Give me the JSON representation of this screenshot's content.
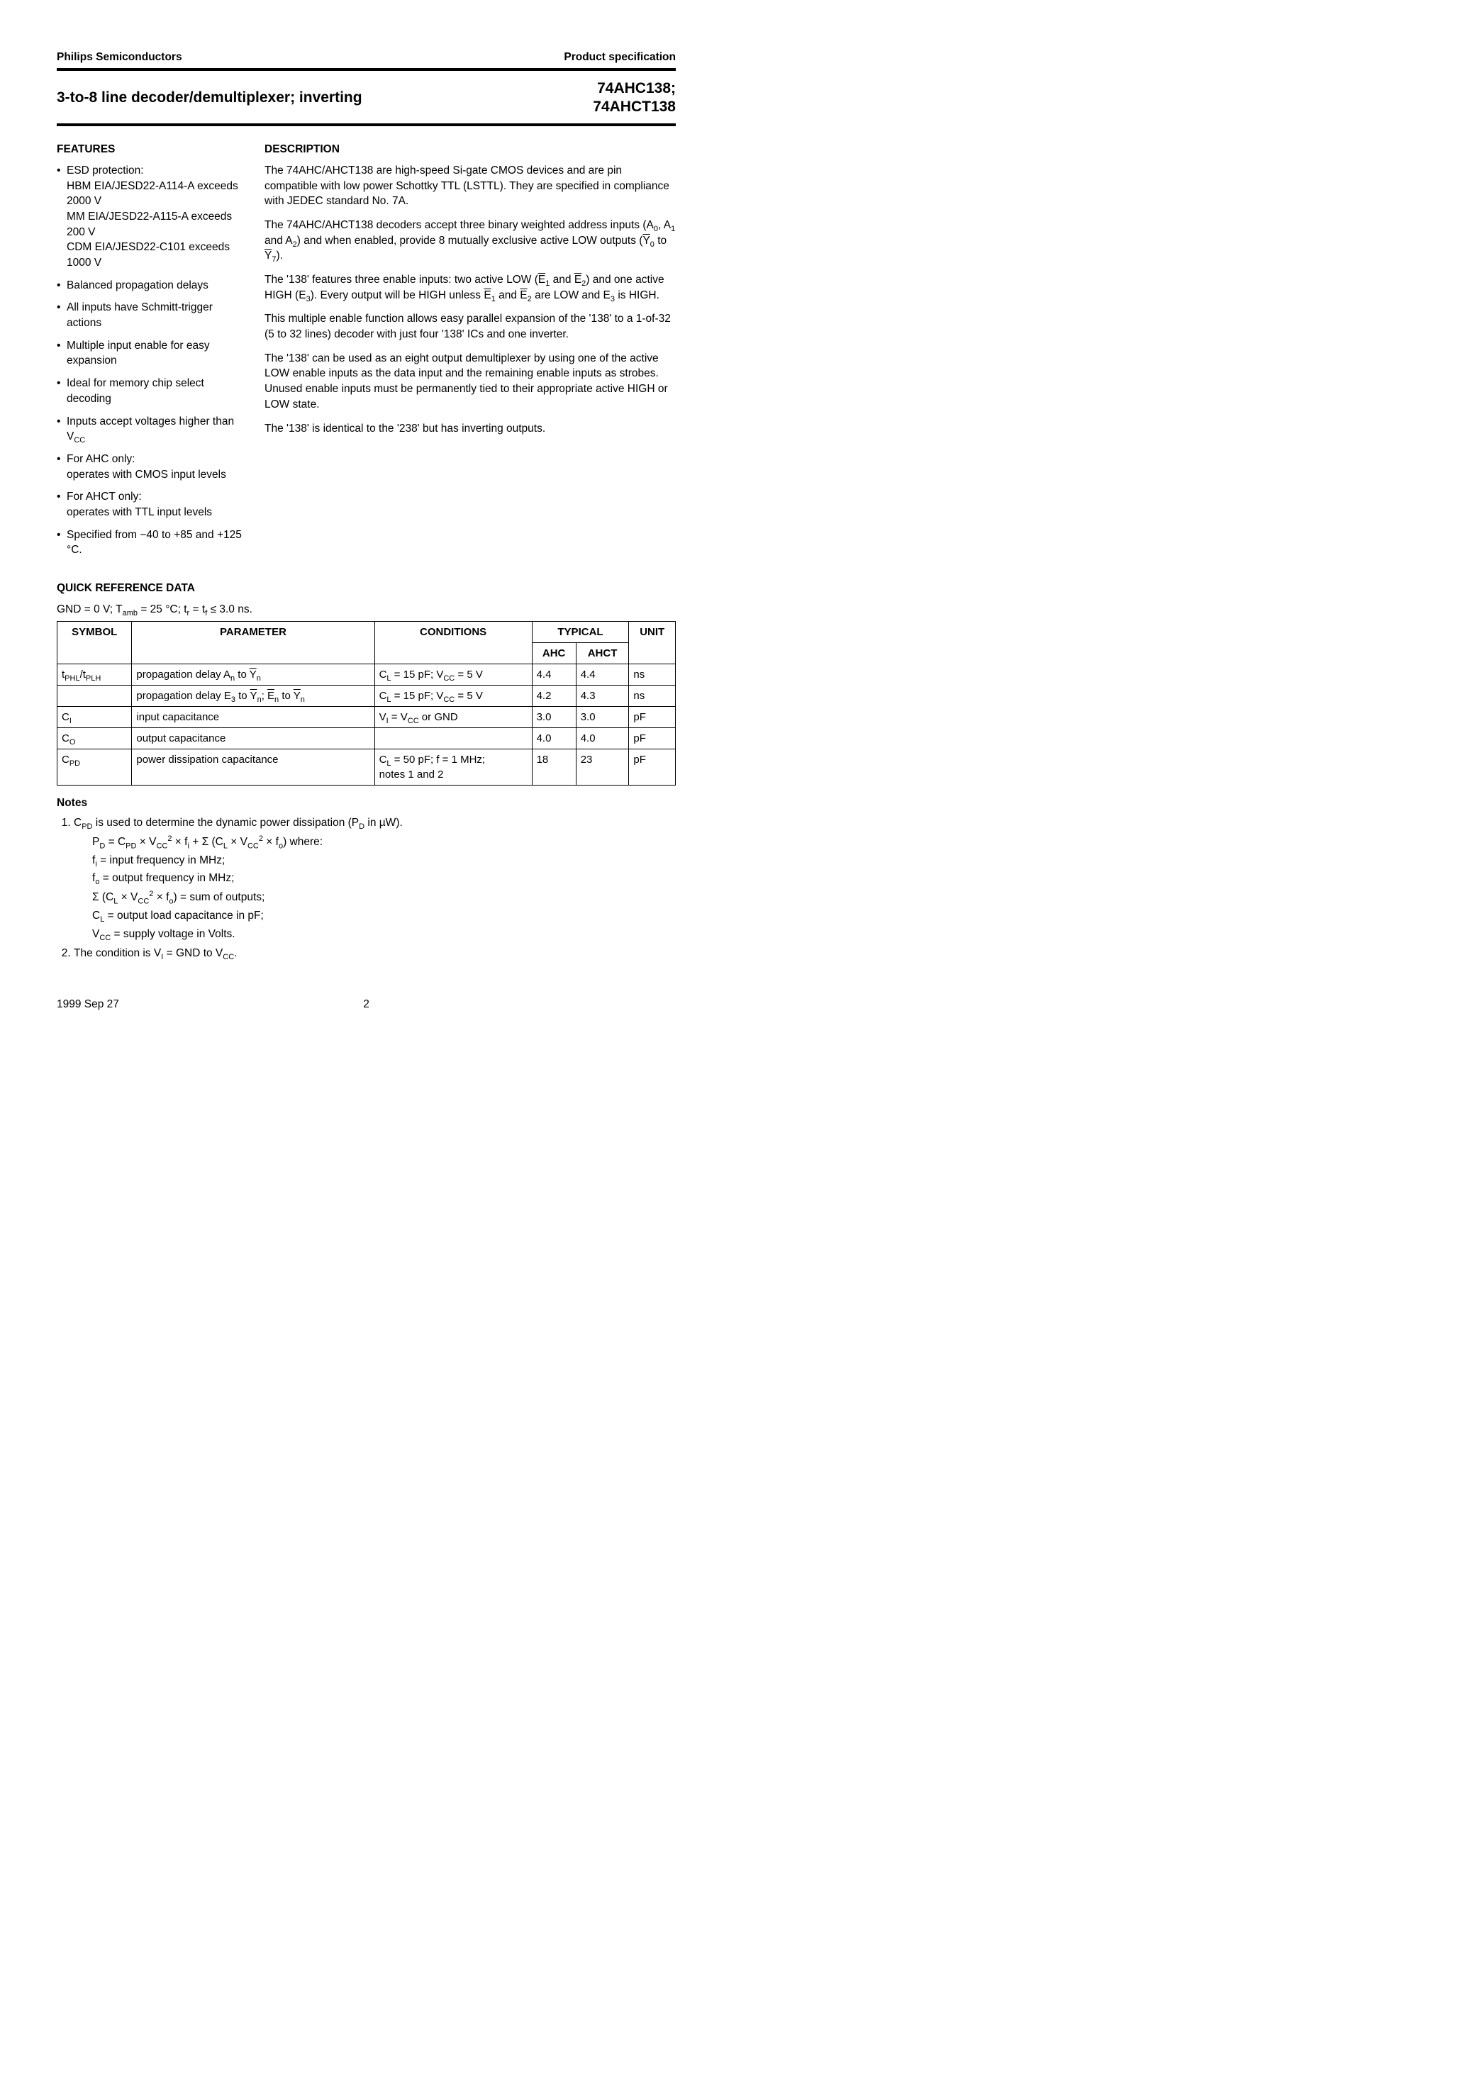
{
  "header": {
    "left": "Philips Semiconductors",
    "right": "Product specification"
  },
  "title": {
    "left": "3-to-8 line decoder/demultiplexer; inverting",
    "right_line1": "74AHC138;",
    "right_line2": "74AHCT138"
  },
  "features": {
    "heading": "FEATURES",
    "items": [
      "ESD protection:\nHBM EIA/JESD22-A114-A exceeds 2000 V\nMM EIA/JESD22-A115-A exceeds 200 V\nCDM EIA/JESD22-C101 exceeds 1000 V",
      "Balanced propagation delays",
      "All inputs have Schmitt-trigger actions",
      "Multiple input enable for easy expansion",
      "Ideal for memory chip select decoding",
      "Inputs accept voltages higher than V_CC",
      "For AHC only:\noperates with CMOS input levels",
      "For AHCT only:\noperates with TTL input levels",
      "Specified from −40 to +85 and +125 °C."
    ]
  },
  "description": {
    "heading": "DESCRIPTION",
    "p1": "The 74AHC/AHCT138 are high-speed Si-gate CMOS devices and are pin compatible with low power Schottky TTL (LSTTL). They are specified in compliance with JEDEC standard No. 7A.",
    "p2_pre": "The 74AHC/AHCT138 decoders accept three binary weighted address inputs (A",
    "p2_mid": " and A",
    "p2_post": ") and when enabled, provide 8 mutually exclusive active LOW outputs (",
    "p2_y0": "Y",
    "p2_to": " to ",
    "p2_y7": "Y",
    "p2_end": ").",
    "p3a": "The '138' features three enable inputs: two active LOW (",
    "p3b": " and ",
    "p3c": ") and one active HIGH (E",
    "p3d": "). Every output will be HIGH unless ",
    "p3e": " and ",
    "p3f": " are LOW and E",
    "p3g": " is HIGH.",
    "p4": "This multiple enable function allows easy parallel expansion of the '138' to a 1-of-32 (5 to 32 lines) decoder with just four '138' ICs and one inverter.",
    "p5": "The '138' can be used as an eight output demultiplexer by using one of the active LOW enable inputs as the data input and the remaining enable inputs as strobes. Unused enable inputs must be permanently tied to their appropriate active HIGH or LOW state.",
    "p6": "The '138' is identical to the '238' but has inverting outputs."
  },
  "qref": {
    "heading": "QUICK REFERENCE DATA",
    "cond_line_a": "GND = 0 V; T",
    "cond_line_b": " = 25 °C; t",
    "cond_line_c": " = t",
    "cond_line_d": " ≤ 3.0 ns.",
    "headers": {
      "symbol": "SYMBOL",
      "parameter": "PARAMETER",
      "conditions": "CONDITIONS",
      "typical": "TYPICAL",
      "ahc": "AHC",
      "ahct": "AHCT",
      "unit": "UNIT"
    },
    "rows": [
      {
        "symbol_html": "t<span class='sub'>PHL</span>/t<span class='sub'>PLH</span>",
        "param_html": "propagation delay A<span class='sub'>n</span> to <span class='ovl'>Y</span><span class='sub'>n</span>",
        "cond_html": "C<span class='sub'>L</span> = 15 pF; V<span class='sub'>CC</span> = 5 V",
        "ahc": "4.4",
        "ahct": "4.4",
        "unit": "ns"
      },
      {
        "symbol_html": "",
        "param_html": "propagation delay E<span class='sub'>3</span> to <span class='ovl'>Y</span><span class='sub'>n</span>; <span class='ovl'>E</span><span class='sub'>n</span> to <span class='ovl'>Y</span><span class='sub'>n</span>",
        "cond_html": "C<span class='sub'>L</span> = 15 pF; V<span class='sub'>CC</span> = 5 V",
        "ahc": "4.2",
        "ahct": "4.3",
        "unit": "ns"
      },
      {
        "symbol_html": "C<span class='sub'>I</span>",
        "param_html": "input capacitance",
        "cond_html": "V<span class='sub'>I</span> = V<span class='sub'>CC</span> or GND",
        "ahc": "3.0",
        "ahct": "3.0",
        "unit": "pF"
      },
      {
        "symbol_html": "C<span class='sub'>O</span>",
        "param_html": "output capacitance",
        "cond_html": "",
        "ahc": "4.0",
        "ahct": "4.0",
        "unit": "pF"
      },
      {
        "symbol_html": "C<span class='sub'>PD</span>",
        "param_html": "power dissipation capacitance",
        "cond_html": "C<span class='sub'>L</span> = 50 pF; f = 1 MHz;<br>notes 1 and 2",
        "ahc": "18",
        "ahct": "23",
        "unit": "pF"
      }
    ]
  },
  "notes": {
    "heading": "Notes",
    "n1_intro_a": "C",
    "n1_intro_b": " is used to determine the dynamic power dissipation (P",
    "n1_intro_c": " in µW).",
    "n1_eq": "P_D = C_PD × V_CC^2 × f_i + Σ (C_L × V_CC^2 × f_o) where:",
    "defs": [
      "f_i = input frequency in MHz;",
      "f_o = output frequency in MHz;",
      "Σ (C_L × V_CC^2 × f_o) = sum of outputs;",
      "C_L = output load capacitance in pF;",
      "V_CC = supply voltage in Volts."
    ],
    "n2_a": "The condition is V",
    "n2_b": " = GND to V",
    "n2_c": "."
  },
  "footer": {
    "date": "1999 Sep 27",
    "page": "2"
  }
}
